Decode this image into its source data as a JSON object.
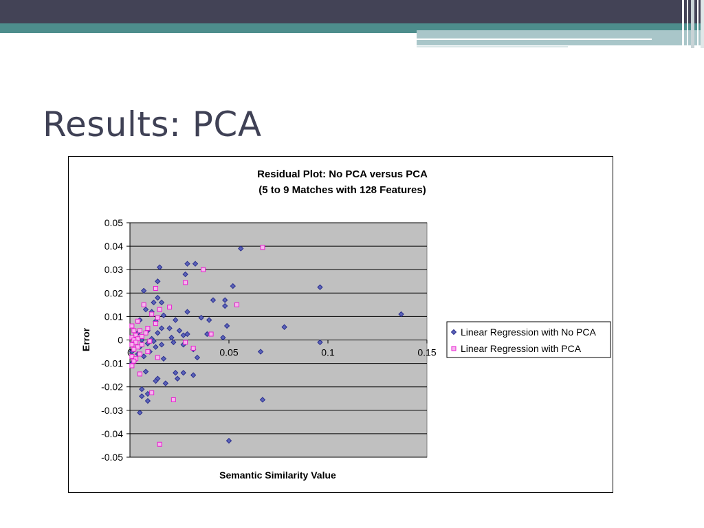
{
  "slide": {
    "title": "Results: PCA",
    "colors": {
      "top_band": "#434356",
      "teal_band": "#4d8d8c",
      "light_band": "#a9c6c9",
      "title_text": "#3f4155"
    }
  },
  "chart_data": {
    "type": "scatter",
    "title_lines": [
      "Residual Plot: No PCA versus PCA",
      "(5 to 9 Matches with 128 Features)"
    ],
    "xlabel": "Semantic Similarity Value",
    "ylabel": "Error",
    "xlim": [
      0,
      0.15
    ],
    "ylim": [
      -0.05,
      0.05
    ],
    "x_ticks": [
      0,
      0.05,
      0.1,
      0.15
    ],
    "x_tick_labels": [
      "0",
      "0.05",
      "0.1",
      "0.15"
    ],
    "y_ticks": [
      0.05,
      0.04,
      0.03,
      0.02,
      0.01,
      0,
      -0.01,
      -0.02,
      -0.03,
      -0.04,
      -0.05
    ],
    "y_tick_labels": [
      "0.05",
      "0.04",
      "0.03",
      "0.02",
      "0.01",
      "0",
      "-0.01",
      "-0.02",
      "-0.03",
      "-0.04",
      "-0.05"
    ],
    "grid": "horizontal",
    "plot_background": "#c0c0c0",
    "legend_position": "right",
    "series": [
      {
        "name": "Linear Regression with No PCA",
        "marker": "diamond",
        "color": "#2b2f8f",
        "fill": "#5b63b8",
        "points": [
          [
            0.056,
            0.039
          ],
          [
            0.029,
            0.0325
          ],
          [
            0.033,
            0.0325
          ],
          [
            0.015,
            0.031
          ],
          [
            0.028,
            0.028
          ],
          [
            0.014,
            0.025
          ],
          [
            0.052,
            0.023
          ],
          [
            0.096,
            0.0225
          ],
          [
            0.007,
            0.021
          ],
          [
            0.042,
            0.017
          ],
          [
            0.048,
            0.017
          ],
          [
            0.014,
            0.018
          ],
          [
            0.012,
            0.016
          ],
          [
            0.016,
            0.016
          ],
          [
            0.048,
            0.0145
          ],
          [
            0.008,
            0.013
          ],
          [
            0.011,
            0.012
          ],
          [
            0.029,
            0.012
          ],
          [
            0.137,
            0.011
          ],
          [
            0.017,
            0.0105
          ],
          [
            0.036,
            0.0095
          ],
          [
            0.023,
            0.0085
          ],
          [
            0.04,
            0.0085
          ],
          [
            0.005,
            0.0085
          ],
          [
            0.013,
            0.008
          ],
          [
            0.049,
            0.006
          ],
          [
            0.078,
            0.0055
          ],
          [
            0.02,
            0.005
          ],
          [
            0.016,
            0.005
          ],
          [
            0.025,
            0.004
          ],
          [
            0.009,
            0.004
          ],
          [
            0.004,
            0.003
          ],
          [
            0.014,
            0.003
          ],
          [
            0.029,
            0.0025
          ],
          [
            0.039,
            0.0025
          ],
          [
            0.027,
            0.002
          ],
          [
            0.047,
            0.001
          ],
          [
            0.021,
            0.001
          ],
          [
            0.011,
            0.0005
          ],
          [
            0.006,
            0.0
          ],
          [
            0.003,
            0.0
          ],
          [
            0.012,
            -0.0005
          ],
          [
            0.022,
            -0.001
          ],
          [
            0.096,
            -0.001
          ],
          [
            0.009,
            -0.0015
          ],
          [
            0.027,
            -0.002
          ],
          [
            0.016,
            -0.002
          ],
          [
            0.013,
            -0.003
          ],
          [
            0.005,
            -0.003
          ],
          [
            0.032,
            -0.004
          ],
          [
            0.066,
            -0.005
          ],
          [
            0.01,
            -0.005
          ],
          [
            0.001,
            -0.005
          ],
          [
            0.004,
            -0.006
          ],
          [
            0.034,
            -0.0075
          ],
          [
            0.017,
            -0.008
          ],
          [
            0.007,
            -0.007
          ],
          [
            0.002,
            -0.009
          ],
          [
            0.001,
            -0.01
          ],
          [
            0.008,
            -0.0135
          ],
          [
            0.023,
            -0.014
          ],
          [
            0.027,
            -0.014
          ],
          [
            0.032,
            -0.015
          ],
          [
            0.024,
            -0.0165
          ],
          [
            0.014,
            -0.0165
          ],
          [
            0.013,
            -0.0175
          ],
          [
            0.018,
            -0.0185
          ],
          [
            0.006,
            -0.021
          ],
          [
            0.009,
            -0.023
          ],
          [
            0.006,
            -0.024
          ],
          [
            0.067,
            -0.0255
          ],
          [
            0.009,
            -0.026
          ],
          [
            0.005,
            -0.031
          ],
          [
            0.05,
            -0.043
          ]
        ]
      },
      {
        "name": "Linear Regression with PCA",
        "marker": "square",
        "color": "#e81fd0",
        "fill": "#f6b4ee",
        "points": [
          [
            0.067,
            0.0395
          ],
          [
            0.037,
            0.03
          ],
          [
            0.028,
            0.0245
          ],
          [
            0.013,
            0.022
          ],
          [
            0.054,
            0.015
          ],
          [
            0.007,
            0.015
          ],
          [
            0.02,
            0.014
          ],
          [
            0.015,
            0.013
          ],
          [
            0.011,
            0.011
          ],
          [
            0.014,
            0.0095
          ],
          [
            0.004,
            0.008
          ],
          [
            0.013,
            0.007
          ],
          [
            0.001,
            0.006
          ],
          [
            0.009,
            0.005
          ],
          [
            0.005,
            0.004
          ],
          [
            0.002,
            0.004
          ],
          [
            0.008,
            0.003
          ],
          [
            0.041,
            0.0025
          ],
          [
            0.003,
            0.002
          ],
          [
            0.006,
            0.0015
          ],
          [
            0.001,
            0.001
          ],
          [
            0.004,
            0.0005
          ],
          [
            0.002,
            0.0
          ],
          [
            0.01,
            -0.0005
          ],
          [
            0.028,
            -0.001
          ],
          [
            0.003,
            -0.001
          ],
          [
            0.006,
            -0.002
          ],
          [
            0.001,
            -0.002
          ],
          [
            0.004,
            -0.003
          ],
          [
            0.032,
            -0.0035
          ],
          [
            0.002,
            -0.004
          ],
          [
            0.009,
            -0.005
          ],
          [
            0.005,
            -0.006
          ],
          [
            0.001,
            -0.007
          ],
          [
            0.014,
            -0.0075
          ],
          [
            0.003,
            -0.008
          ],
          [
            0.002,
            -0.009
          ],
          [
            0.001,
            -0.011
          ],
          [
            0.005,
            -0.0145
          ],
          [
            0.011,
            -0.0225
          ],
          [
            0.022,
            -0.0255
          ],
          [
            0.015,
            -0.0445
          ]
        ]
      }
    ]
  }
}
